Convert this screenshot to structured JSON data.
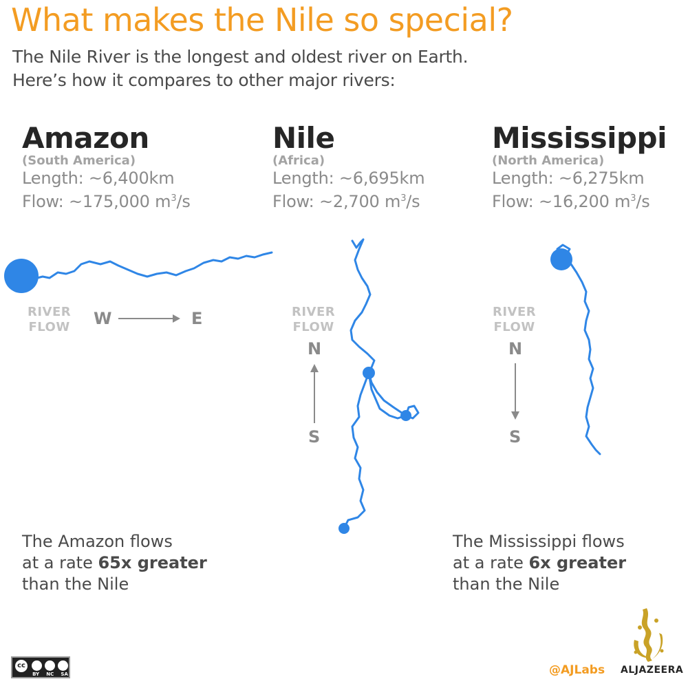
{
  "title": "What makes the Nile so special?",
  "subtitle": {
    "line1": "The Nile River is the longest and oldest river on Earth.",
    "line2": "Here’s how it compares to other major rivers:"
  },
  "rivers": [
    {
      "name": "Amazon",
      "region": "(South America)",
      "length": "Length: ~6,400km",
      "flow_prefix": "Flow: ~175,000 m",
      "flow_sup": "3",
      "flow_suffix": "/s"
    },
    {
      "name": "Nile",
      "region": "(Africa)",
      "length": "Length: ~6,695km",
      "flow_prefix": "Flow: ~2,700 m",
      "flow_sup": "3",
      "flow_suffix": "/s"
    },
    {
      "name": "Mississippi",
      "region": "(North America)",
      "length": "Length: ~6,275km",
      "flow_prefix": "Flow: ~16,200 m",
      "flow_sup": "3",
      "flow_suffix": "/s"
    }
  ],
  "flow_label": {
    "line1": "RIVER",
    "line2": "FLOW"
  },
  "directions": {
    "west": "W",
    "east": "E",
    "north": "N",
    "south": "S"
  },
  "notes": {
    "amazon": {
      "line1": "The Amazon flows",
      "line2_prefix": "at a rate ",
      "line2_bold": "65x greater",
      "line3": "than the Nile"
    },
    "mississippi": {
      "line1": "The Mississippi flows",
      "line2_prefix": "at a rate ",
      "line2_bold": "6x greater",
      "line3": "than the Nile"
    }
  },
  "footer": {
    "license_badge": {
      "top": "cc",
      "labels": [
        "BY",
        "NC",
        "SA"
      ]
    },
    "handle": "@AJLabs",
    "brand": "ALJAZEERA"
  },
  "colors": {
    "title": "#f39c22",
    "river": "#2f86e6",
    "heading": "#262626",
    "muted": "#8a8a8a",
    "flow_label": "#c2c2c2"
  }
}
